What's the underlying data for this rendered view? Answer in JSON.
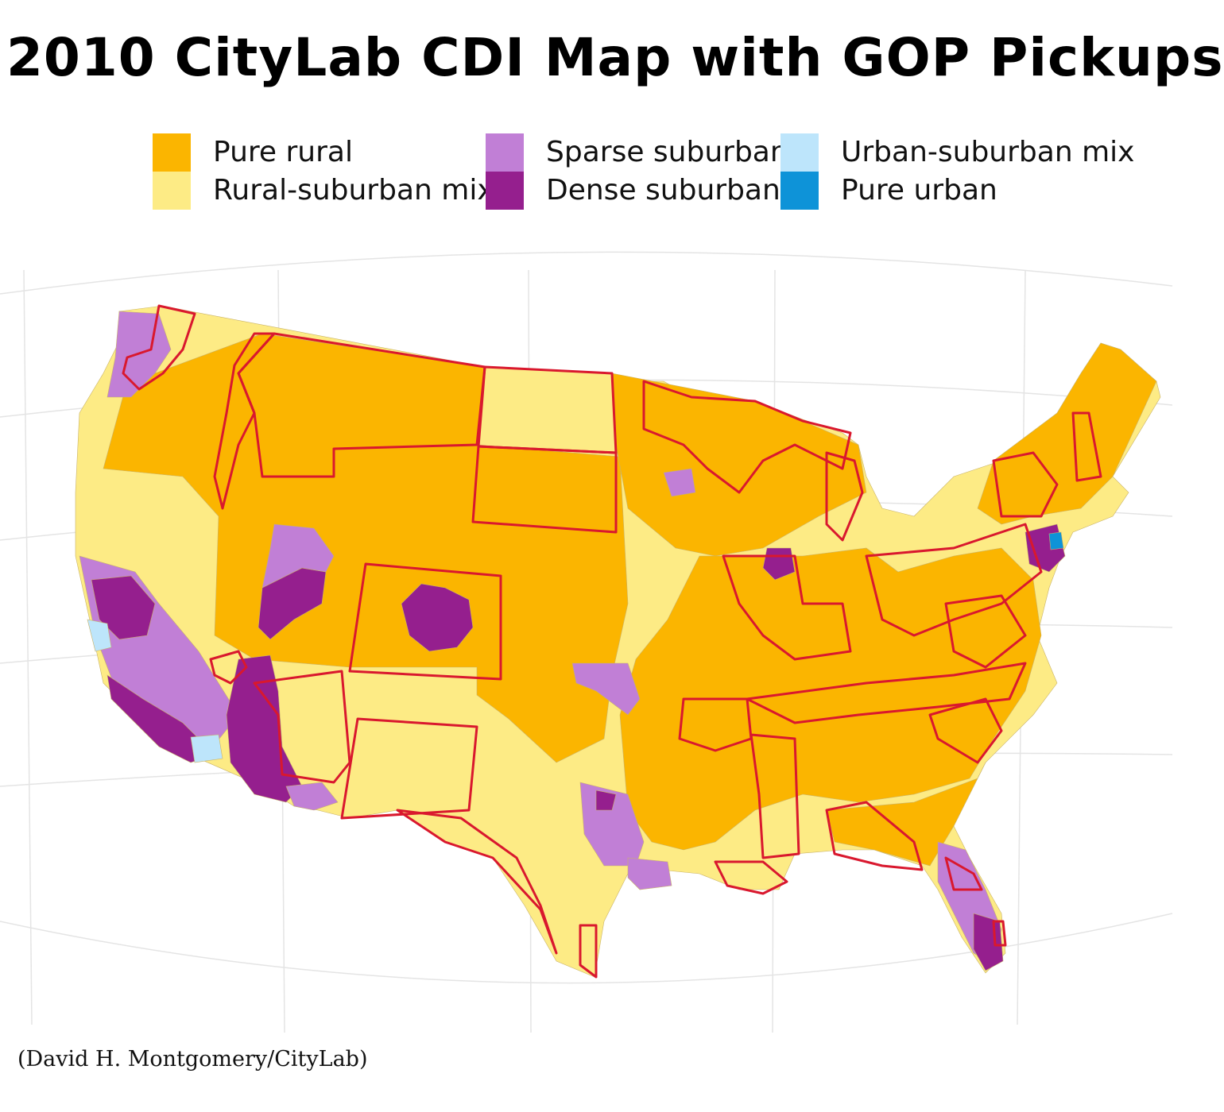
{
  "title": "2010 CityLab CDI Map with GOP Pickups",
  "legend": [
    {
      "label": "Pure rural",
      "color": "#fbb500"
    },
    {
      "label": "Rural-suburban mix",
      "color": "#fdeb85"
    },
    {
      "label": "Sparse suburban",
      "color": "#c17fd6"
    },
    {
      "label": "Dense suburban",
      "color": "#951f8e"
    },
    {
      "label": "Urban-suburban mix",
      "color": "#bde5fb"
    },
    {
      "label": "Pure urban",
      "color": "#0e93d8"
    }
  ],
  "map": {
    "subject": "contiguous United States congressional districts",
    "highlight_color": "#d9182e",
    "highlight_meaning": "GOP pickups",
    "background_graticule_color": "#e4e4e4"
  },
  "credit": "(David H. Montgomery/CityLab)"
}
